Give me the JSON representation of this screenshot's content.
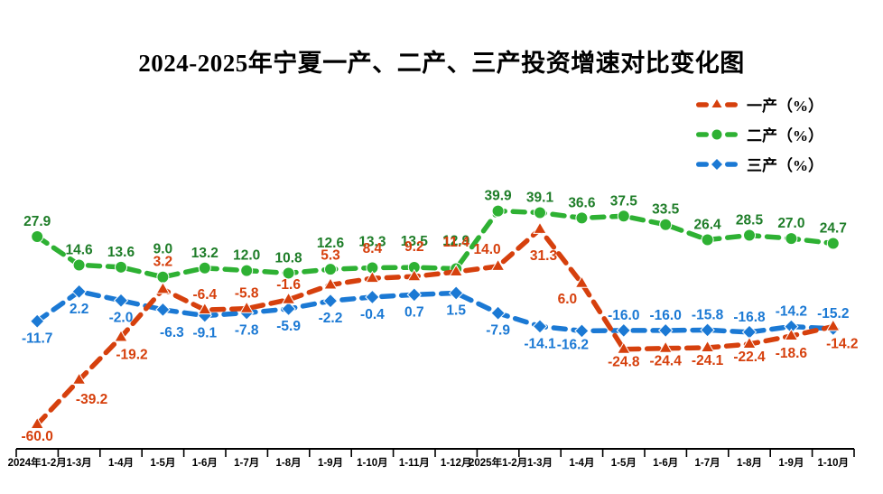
{
  "title": "2024-2025年宁夏一产、二产、三产投资增速对比变化图",
  "chart_data": {
    "type": "line",
    "categories": [
      "2024年1-2月",
      "1-3月",
      "1-4月",
      "1-5月",
      "1-6月",
      "1-7月",
      "1-8月",
      "1-9月",
      "1-10月",
      "1-11月",
      "1-12月",
      "2025年1-2月",
      "1-3月",
      "1-4月",
      "1-5月",
      "1-6月",
      "1-7月",
      "1-8月",
      "1-9月",
      "1-10月"
    ],
    "series": [
      {
        "name": "一产（%）",
        "marker": "triangle",
        "color": "#d6400d",
        "label_color": "#d6400d",
        "values": [
          -60.0,
          -39.2,
          -19.2,
          3.2,
          -6.4,
          -5.8,
          -1.6,
          5.3,
          8.4,
          9.2,
          11.4,
          14.0,
          31.3,
          6.0,
          -24.8,
          -24.4,
          -24.1,
          -22.4,
          -18.6,
          -14.2
        ],
        "labels": [
          "-60.0",
          "-39.2",
          "-19.2",
          "3.2",
          "-6.4",
          "-5.8",
          "-1.6",
          "5.3",
          "8.4",
          "9.2",
          "11.4",
          "14.0",
          "31.3",
          "6.0",
          "-24.8",
          "-24.4",
          "-24.1",
          "-22.4",
          "-18.6",
          "-14.2"
        ]
      },
      {
        "name": "二产（%）",
        "marker": "circle",
        "color": "#2eb133",
        "label_color": "#1e7d28",
        "values": [
          27.9,
          14.6,
          13.6,
          9.0,
          13.2,
          12.0,
          10.8,
          12.6,
          13.3,
          13.5,
          12.9,
          39.9,
          39.1,
          36.6,
          37.5,
          33.5,
          26.4,
          28.5,
          27.0,
          24.7
        ],
        "labels": [
          "27.9",
          "14.6",
          "13.6",
          "9.0",
          "13.2",
          "12.0",
          "10.8",
          "12.6",
          "13.3",
          "13.5",
          "12.9",
          "39.9",
          "39.1",
          "36.6",
          "37.5",
          "33.5",
          "26.4",
          "28.5",
          "27.0",
          "24.7"
        ]
      },
      {
        "name": "三产（%）",
        "marker": "diamond",
        "color": "#1b79d4",
        "label_color": "#1b79d4",
        "values": [
          -11.7,
          2.2,
          -2.0,
          -6.3,
          -9.1,
          -7.8,
          -5.9,
          -2.2,
          -0.4,
          0.7,
          1.5,
          -7.9,
          -14.1,
          -16.2,
          -16.0,
          -16.0,
          -15.8,
          -16.8,
          -14.2,
          -15.2
        ],
        "labels": [
          "-11.7",
          "2.2",
          "-2.0",
          "-6.3",
          "-9.1",
          "-7.8",
          "-5.9",
          "-2.2",
          "-0.4",
          "0.7",
          "1.5",
          "-7.9",
          "-14.1",
          "-16.2",
          "-16.0",
          "-16.0",
          "-15.8",
          "-16.8",
          "-14.2",
          "-15.2"
        ]
      }
    ],
    "xlabel": "",
    "ylabel": "",
    "ylim": [
      -71,
      58
    ],
    "grid": false,
    "legend_position": "top-right",
    "background": "#ffffff",
    "axis_color": "#000000"
  }
}
